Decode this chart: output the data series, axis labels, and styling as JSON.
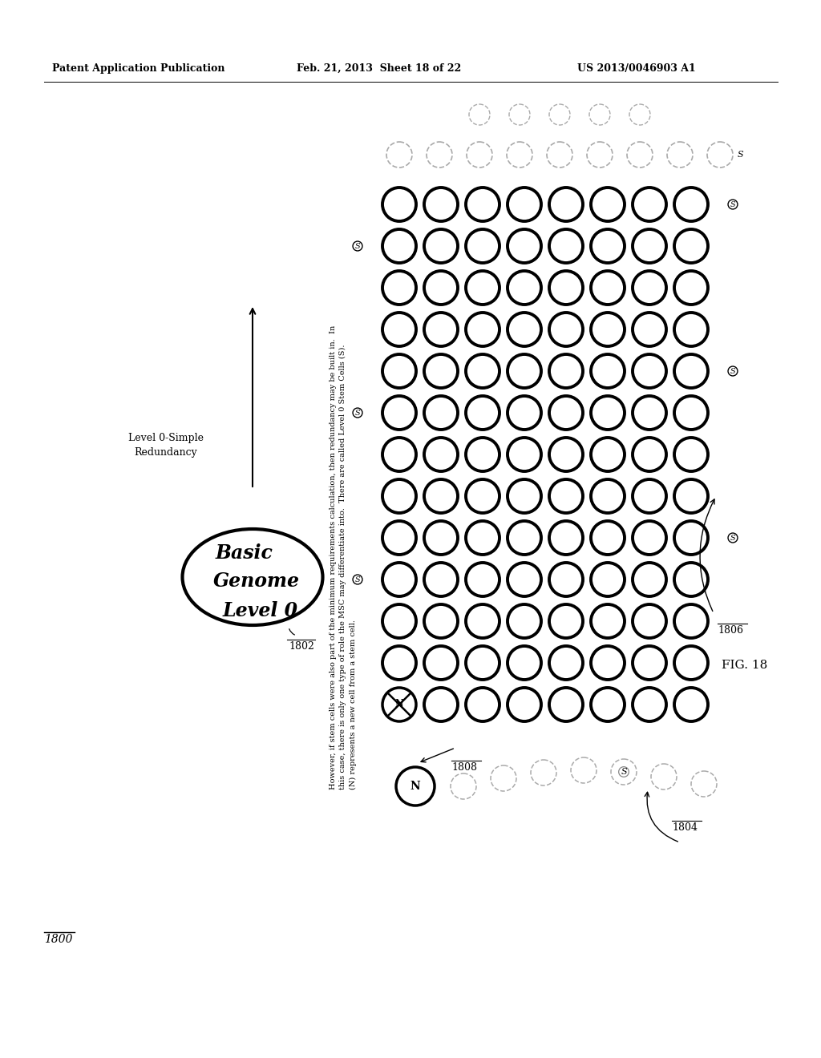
{
  "header_left": "Patent Application Publication",
  "header_mid": "Feb. 21, 2013  Sheet 18 of 22",
  "header_right": "US 2013/0046903 A1",
  "fig_label": "FIG. 18",
  "fig_number": "1800",
  "ref_1802": "1802",
  "ref_1804": "1804",
  "ref_1806": "1806",
  "ref_1808": "1808",
  "genome_line1": "Basic",
  "genome_line2": "Genome",
  "genome_line3": "Level 0",
  "level_label_1": "Level 0-Simple",
  "level_label_2": "Redundancy",
  "note_line1": "However, if stem cells were also part of the minimum requirements calculation, then redundancy may be built in.  In",
  "note_line2": "this case, there is only one type of role the MSC may differentiate into.  There are called Level 0 Stem Cells (S).",
  "note_line3": "(N) represents a new cell from a stem cell.",
  "bg_color": "#ffffff"
}
